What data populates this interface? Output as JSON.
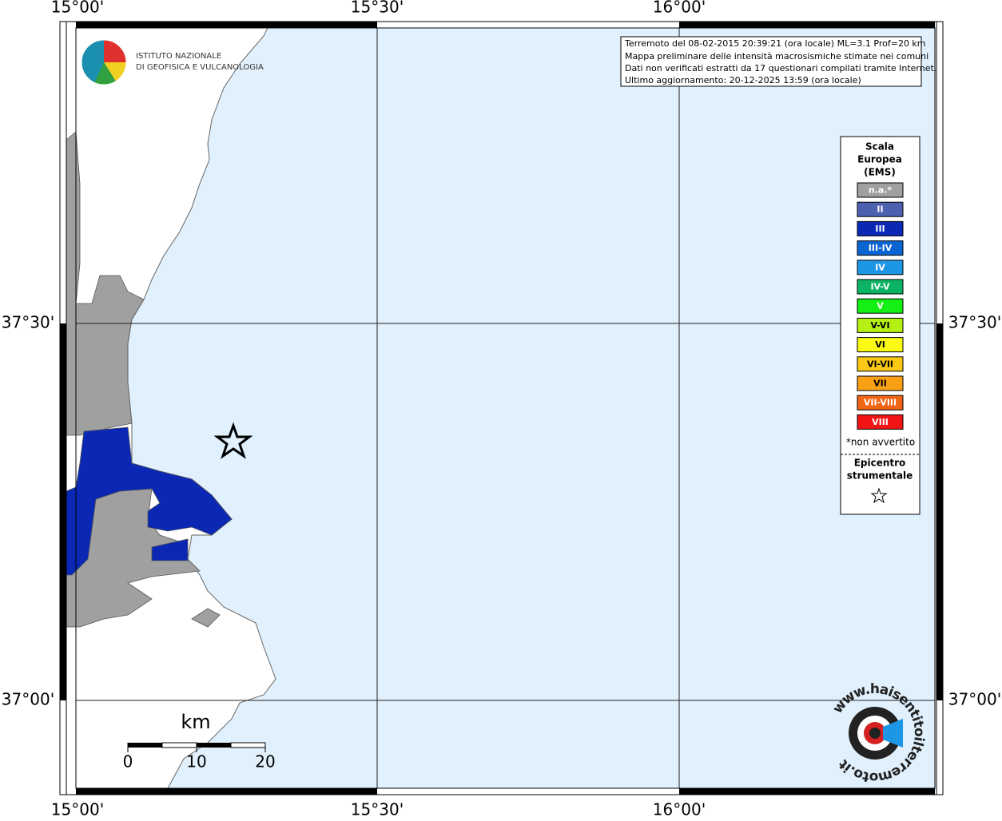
{
  "map": {
    "lon_labels": [
      "15°00'",
      "15°30'",
      "16°00'"
    ],
    "lat_labels": [
      "37°30'",
      "37°00'"
    ],
    "info": [
      "Terremoto del 08-02-2015 20:39:21 (ora locale) ML=3.1 Prof=20 km",
      "Mappa preliminare delle intensità macrosismiche stimate nei comuni",
      "Dati non verificati estratti da 17 questionari compilati tramite Internet.",
      "Ultimo aggiornamento: 20-12-2025 13:59 (ora locale)"
    ],
    "logo": [
      "ISTITUTO NAZIONALE",
      "DI GEOFISICA E VULCANOLOGIA"
    ],
    "legend": {
      "title": [
        "Scala",
        "Europea",
        "(EMS)"
      ],
      "items": [
        {
          "label": "n.a.*",
          "color": "#a0a0a0"
        },
        {
          "label": "II",
          "color": "#4c62b0"
        },
        {
          "label": "III",
          "color": "#0a28b4"
        },
        {
          "label": "III-IV",
          "color": "#0a64d2"
        },
        {
          "label": "IV",
          "color": "#1e96e6"
        },
        {
          "label": "IV-V",
          "color": "#0ab464"
        },
        {
          "label": "V",
          "color": "#14f014"
        },
        {
          "label": "V-VI",
          "color": "#b4f014"
        },
        {
          "label": "VI",
          "color": "#fafa14"
        },
        {
          "label": "VI-VII",
          "color": "#fac814"
        },
        {
          "label": "VII",
          "color": "#faa014"
        },
        {
          "label": "VII-VIII",
          "color": "#f06414"
        },
        {
          "label": "VIII",
          "color": "#f01414"
        }
      ],
      "note": "*non avvertito",
      "epicenter": [
        "Epicentro",
        "strumentale"
      ]
    },
    "scale": {
      "unit": "km",
      "labels": [
        "0",
        "10",
        "20"
      ]
    },
    "watermark": "www.haisentitoilterremoto.it"
  }
}
